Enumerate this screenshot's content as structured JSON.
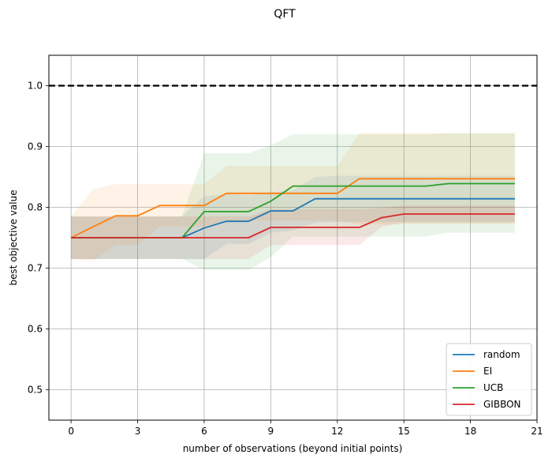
{
  "chart_data": {
    "type": "line",
    "title": "QFT",
    "xlabel": "number of observations (beyond initial points)",
    "ylabel": "best objective value",
    "xlim": [
      -1,
      21
    ],
    "ylim": [
      0.45,
      1.05
    ],
    "xticks": [
      0,
      3,
      6,
      9,
      12,
      15,
      18,
      21
    ],
    "xtick_labels": [
      "0",
      "3",
      "6",
      "9",
      "12",
      "15",
      "18",
      "21"
    ],
    "yticks": [
      0.5,
      0.6,
      0.7,
      0.8,
      0.9,
      1.0
    ],
    "ytick_labels": [
      "0.5",
      "0.6",
      "0.7",
      "0.8",
      "0.9",
      "1.0"
    ],
    "grid": true,
    "legend_position": "lower-right",
    "reference_line": {
      "y": 1.0,
      "style": "dashed",
      "color": "#000000"
    },
    "x": [
      0,
      1,
      2,
      3,
      4,
      5,
      6,
      7,
      8,
      9,
      10,
      11,
      12,
      13,
      14,
      15,
      16,
      17,
      18,
      19,
      20
    ],
    "series": [
      {
        "name": "random",
        "color": "#1f77b4",
        "values": [
          0.75,
          0.75,
          0.75,
          0.75,
          0.75,
          0.75,
          0.766,
          0.777,
          0.777,
          0.794,
          0.794,
          0.814,
          0.814,
          0.814,
          0.814,
          0.814,
          0.814,
          0.814,
          0.814,
          0.814,
          0.814
        ],
        "lower": [
          0.715,
          0.715,
          0.715,
          0.715,
          0.715,
          0.715,
          0.715,
          0.74,
          0.74,
          0.758,
          0.762,
          0.775,
          0.776,
          0.776,
          0.776,
          0.776,
          0.776,
          0.776,
          0.776,
          0.776,
          0.776
        ],
        "upper": [
          0.785,
          0.785,
          0.785,
          0.785,
          0.785,
          0.785,
          0.818,
          0.822,
          0.82,
          0.825,
          0.828,
          0.85,
          0.852,
          0.852,
          0.852,
          0.852,
          0.852,
          0.852,
          0.852,
          0.852,
          0.852
        ]
      },
      {
        "name": "EI",
        "color": "#ff7f0e",
        "values": [
          0.75,
          0.768,
          0.786,
          0.786,
          0.803,
          0.803,
          0.803,
          0.823,
          0.823,
          0.823,
          0.823,
          0.823,
          0.823,
          0.847,
          0.847,
          0.847,
          0.847,
          0.847,
          0.847,
          0.847,
          0.847
        ],
        "lower": [
          0.715,
          0.712,
          0.738,
          0.738,
          0.768,
          0.768,
          0.768,
          0.778,
          0.778,
          0.778,
          0.778,
          0.778,
          0.778,
          0.772,
          0.772,
          0.772,
          0.772,
          0.772,
          0.772,
          0.772,
          0.772
        ],
        "upper": [
          0.785,
          0.83,
          0.838,
          0.838,
          0.838,
          0.838,
          0.838,
          0.868,
          0.868,
          0.868,
          0.868,
          0.868,
          0.868,
          0.922,
          0.922,
          0.922,
          0.922,
          0.922,
          0.922,
          0.922,
          0.922
        ]
      },
      {
        "name": "UCB",
        "color": "#2ca02c",
        "values": [
          0.75,
          0.75,
          0.75,
          0.75,
          0.75,
          0.75,
          0.793,
          0.793,
          0.793,
          0.81,
          0.835,
          0.835,
          0.835,
          0.835,
          0.835,
          0.835,
          0.835,
          0.839,
          0.839,
          0.839,
          0.839
        ],
        "lower": [
          0.715,
          0.715,
          0.715,
          0.715,
          0.715,
          0.715,
          0.697,
          0.697,
          0.697,
          0.718,
          0.752,
          0.752,
          0.752,
          0.752,
          0.752,
          0.752,
          0.752,
          0.758,
          0.758,
          0.758,
          0.758
        ],
        "upper": [
          0.785,
          0.785,
          0.785,
          0.785,
          0.785,
          0.785,
          0.889,
          0.889,
          0.889,
          0.902,
          0.92,
          0.92,
          0.92,
          0.92,
          0.92,
          0.92,
          0.92,
          0.922,
          0.922,
          0.922,
          0.922
        ]
      },
      {
        "name": "GIBBON",
        "color": "#d62728",
        "values": [
          0.75,
          0.75,
          0.75,
          0.75,
          0.75,
          0.75,
          0.75,
          0.75,
          0.75,
          0.767,
          0.767,
          0.767,
          0.767,
          0.767,
          0.783,
          0.789,
          0.789,
          0.789,
          0.789,
          0.789,
          0.789
        ],
        "lower": [
          0.715,
          0.715,
          0.715,
          0.715,
          0.715,
          0.715,
          0.715,
          0.715,
          0.715,
          0.738,
          0.738,
          0.738,
          0.738,
          0.738,
          0.768,
          0.775,
          0.775,
          0.775,
          0.775,
          0.775,
          0.775
        ],
        "upper": [
          0.785,
          0.785,
          0.785,
          0.785,
          0.785,
          0.785,
          0.785,
          0.785,
          0.785,
          0.797,
          0.797,
          0.797,
          0.797,
          0.797,
          0.799,
          0.803,
          0.803,
          0.803,
          0.803,
          0.803,
          0.803
        ]
      }
    ]
  }
}
